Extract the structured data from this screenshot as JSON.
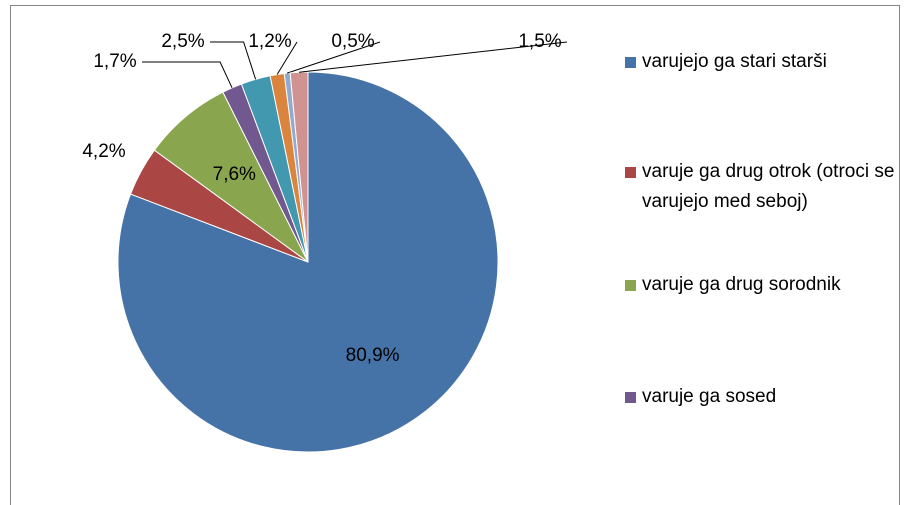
{
  "chart_data": {
    "type": "pie",
    "categories": [
      "varujejo ga stari starši",
      "varuje ga drug otrok (otroci se varujejo med seboj)",
      "varuje ga drug sorodnik",
      "varuje ga sosed",
      null,
      null,
      null,
      null
    ],
    "values": [
      80.9,
      4.2,
      7.6,
      1.7,
      2.5,
      1.2,
      0.5,
      1.5
    ],
    "value_labels": [
      "80,9%",
      "4,2%",
      "7,6%",
      "1,7%",
      "2,5%",
      "1,2%",
      "0,5%",
      "1,5%"
    ],
    "colors": [
      "#4572a7",
      "#aa4643",
      "#89a54e",
      "#71588f",
      "#4198af",
      "#db843d",
      "#93a9cf",
      "#d19392"
    ]
  }
}
